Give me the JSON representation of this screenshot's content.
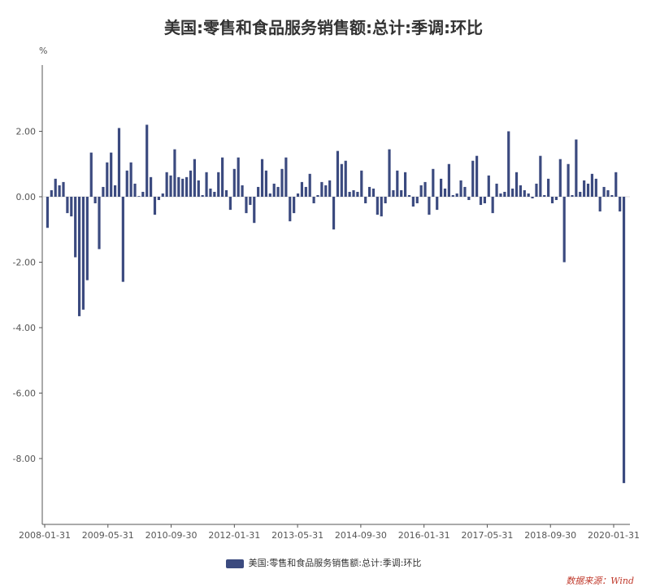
{
  "chart_data": {
    "type": "bar",
    "title": "美国:零售和食品服务销售额:总计:季调:环比",
    "ylabel": "%",
    "ylim": [
      -10,
      4
    ],
    "yticks": [
      2.0,
      0.0,
      -2.0,
      -4.0,
      -6.0,
      -8.0
    ],
    "ytick_labels": [
      "2.00",
      "0.00",
      "-2.00",
      "-4.00",
      "-6.00",
      "-8.00"
    ],
    "x_tick_labels": [
      "2008-01-31",
      "2009-05-31",
      "2010-09-30",
      "2012-01-31",
      "2013-05-31",
      "2014-09-30",
      "2016-01-31",
      "2017-05-31",
      "2018-09-30",
      "2020-01-31"
    ],
    "bar_color": "#3b4a7f",
    "legend_position": "bottom",
    "series": [
      {
        "name": "美国:零售和食品服务销售额:总计:季调:环比",
        "values": [
          -0.95,
          0.2,
          0.55,
          0.35,
          0.45,
          -0.5,
          -0.6,
          -1.85,
          -3.65,
          -3.45,
          -2.55,
          1.35,
          -0.2,
          -1.6,
          0.3,
          1.05,
          1.35,
          0.35,
          2.1,
          -2.6,
          0.8,
          1.05,
          0.4,
          0.02,
          0.15,
          2.2,
          0.6,
          -0.55,
          -0.1,
          0.1,
          0.75,
          0.65,
          1.45,
          0.6,
          0.55,
          0.6,
          0.8,
          1.15,
          0.5,
          0.05,
          0.75,
          0.25,
          0.15,
          0.75,
          1.2,
          0.2,
          -0.4,
          0.85,
          1.2,
          0.35,
          -0.5,
          -0.25,
          -0.8,
          0.3,
          1.15,
          0.8,
          0.1,
          0.4,
          0.3,
          0.85,
          1.2,
          -0.75,
          -0.5,
          0.1,
          0.45,
          0.3,
          0.7,
          -0.2,
          0.05,
          0.45,
          0.35,
          0.5,
          -1.0,
          1.4,
          1.0,
          1.1,
          0.15,
          0.2,
          0.15,
          0.8,
          -0.2,
          0.3,
          0.25,
          -0.55,
          -0.6,
          -0.2,
          1.45,
          0.2,
          0.8,
          0.2,
          0.75,
          0.05,
          -0.3,
          -0.2,
          0.35,
          0.45,
          -0.55,
          0.85,
          -0.4,
          0.55,
          0.25,
          1.0,
          0.05,
          0.1,
          0.5,
          0.3,
          -0.1,
          1.1,
          1.25,
          -0.25,
          -0.2,
          0.65,
          -0.5,
          0.4,
          0.1,
          0.15,
          2.0,
          0.25,
          0.75,
          0.35,
          0.2,
          0.1,
          -0.05,
          0.4,
          1.25,
          0.05,
          0.55,
          -0.2,
          -0.1,
          1.15,
          -2.0,
          1.0,
          0.05,
          1.75,
          0.15,
          0.5,
          0.4,
          0.7,
          0.55,
          -0.45,
          0.3,
          0.2,
          0.05,
          0.75,
          -0.45,
          -8.75
        ]
      }
    ]
  },
  "source_text": "数据来源：Wind"
}
